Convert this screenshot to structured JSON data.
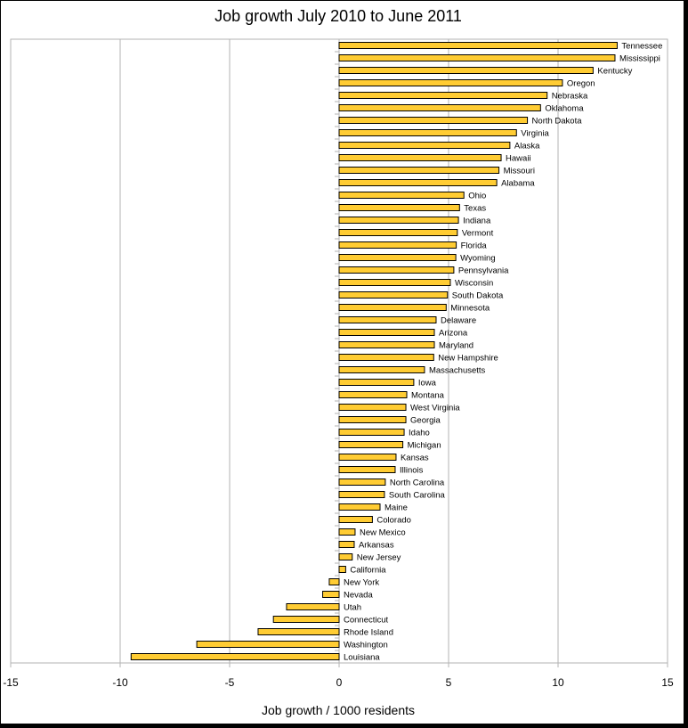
{
  "chart_data": {
    "type": "bar",
    "orientation": "horizontal",
    "title": "Job growth July 2010 to June 2011",
    "xlabel": "Job growth / 1000 residents",
    "ylabel": "",
    "xlim": [
      -15,
      15
    ],
    "xticks": [
      -15,
      -10,
      -5,
      0,
      5,
      10,
      15
    ],
    "grid": "vertical",
    "bar_color": "#FFCC33",
    "categories": [
      "Tennessee",
      "Mississippi",
      "Kentucky",
      "Oregon",
      "Nebraska",
      "Oklahoma",
      "North Dakota",
      "Virginia",
      "Alaska",
      "Hawaii",
      "Missouri",
      "Alabama",
      "Ohio",
      "Texas",
      "Indiana",
      "Vermont",
      "Florida",
      "Wyoming",
      "Pennsylvania",
      "Wisconsin",
      "South Dakota",
      "Minnesota",
      "Delaware",
      "Arizona",
      "Maryland",
      "New Hampshire",
      "Massachusetts",
      "Iowa",
      "Montana",
      "West Virginia",
      "Georgia",
      "Idaho",
      "Michigan",
      "Kansas",
      "Illinois",
      "North Carolina",
      "South Carolina",
      "Maine",
      "Colorado",
      "New Mexico",
      "Arkansas",
      "New Jersey",
      "California",
      "New York",
      "Nevada",
      "Utah",
      "Connecticut",
      "Rhode Island",
      "Washington",
      "Louisiana"
    ],
    "values": [
      12.7,
      12.6,
      11.6,
      10.2,
      9.5,
      9.2,
      8.6,
      8.1,
      7.8,
      7.4,
      7.3,
      7.2,
      5.7,
      5.5,
      5.45,
      5.4,
      5.35,
      5.33,
      5.24,
      5.08,
      4.95,
      4.89,
      4.43,
      4.35,
      4.35,
      4.32,
      3.9,
      3.41,
      3.09,
      3.05,
      3.05,
      2.97,
      2.91,
      2.6,
      2.56,
      2.11,
      2.07,
      1.87,
      1.52,
      0.73,
      0.69,
      0.6,
      0.3,
      -0.45,
      -0.75,
      -2.4,
      -3.0,
      -3.7,
      -6.5,
      -9.5
    ]
  }
}
